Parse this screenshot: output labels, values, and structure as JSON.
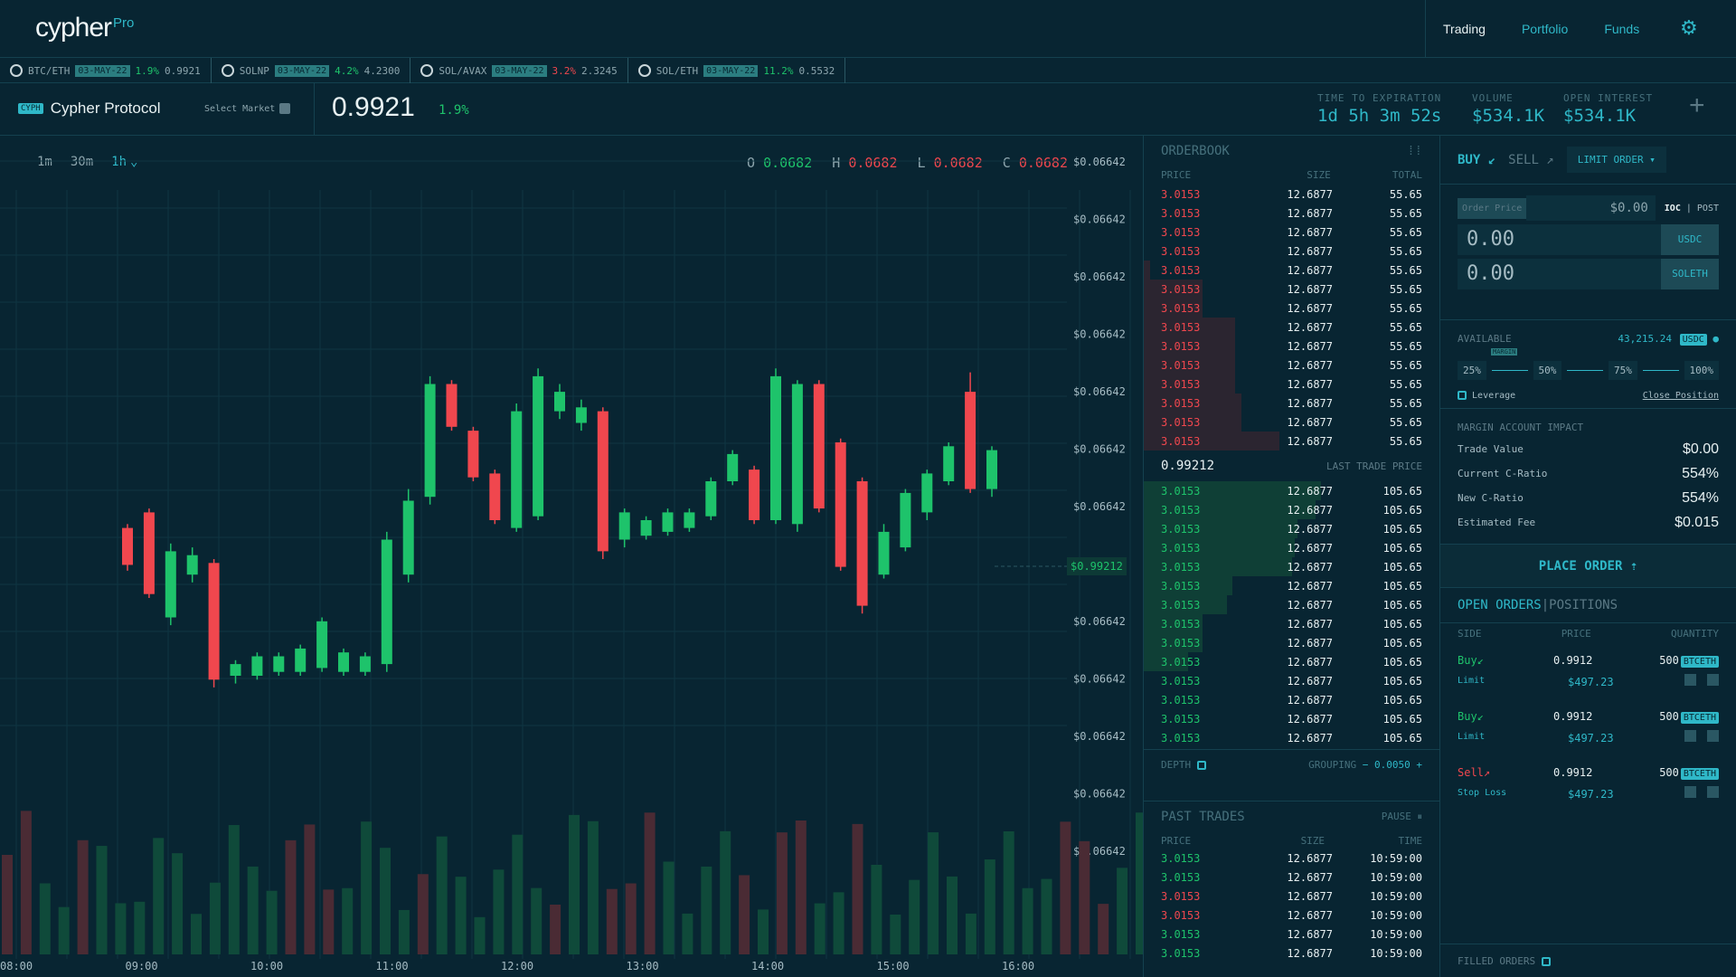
{
  "app": {
    "logo": "cypher",
    "logo_sup": "Pro"
  },
  "nav": {
    "trading": "Trading",
    "portfolio": "Portfolio",
    "funds": "Funds"
  },
  "ticker": [
    {
      "pair": "BTC/ETH",
      "date": "03-MAY-22",
      "chg": "1.9%",
      "price": "0.9921",
      "dir": "up"
    },
    {
      "pair": "SOLNP",
      "date": "03-MAY-22",
      "chg": "4.2%",
      "price": "4.2300",
      "dir": "up"
    },
    {
      "pair": "SOL/AVAX",
      "date": "03-MAY-22",
      "chg": "3.2%",
      "price": "2.3245",
      "dir": "down"
    },
    {
      "pair": "SOL/ETH",
      "date": "03-MAY-22",
      "chg": "11.2%",
      "price": "0.5532",
      "dir": "up"
    }
  ],
  "market": {
    "badge": "CYPH",
    "name": "Cypher Protocol",
    "select": "Select Market",
    "price": "0.9921",
    "change": "1.9%",
    "tte_label": "TIME TO EXPIRATION",
    "tte": "1d 5h 3m 52s",
    "vol_label": "VOLUME",
    "vol": "$534.1K",
    "oi_label": "OPEN INTEREST",
    "oi": "$534.1K"
  },
  "chart": {
    "timeframes": [
      "1m",
      "30m",
      "1h"
    ],
    "active_tf": "1h",
    "ohlc": {
      "o": "0.0682",
      "h": "0.0682",
      "l": "0.0682",
      "c": "0.0682"
    },
    "y_tick_label": "$0.06642",
    "y_ticks": 13,
    "current_price": "$0.99212",
    "x_labels": [
      "08:00",
      "09:00",
      "10:00",
      "11:00",
      "12:00",
      "13:00",
      "14:00",
      "15:00",
      "16:00"
    ],
    "colors": {
      "up": "#1ec36b",
      "down": "#f0474e"
    }
  },
  "chart_data": {
    "type": "candlestick",
    "x_labels": [
      "08:00",
      "09:00",
      "10:00",
      "11:00",
      "12:00",
      "13:00",
      "14:00",
      "15:00",
      "16:00"
    ],
    "y_tick_label": "$0.06642",
    "last_price": "$0.99212",
    "candles": [
      {
        "o": 0.48,
        "c": 0.385,
        "h": 0.49,
        "l": 0.37,
        "v": 0.18
      },
      {
        "o": 0.52,
        "c": 0.31,
        "h": 0.53,
        "l": 0.3,
        "v": 0.2
      },
      {
        "o": 0.25,
        "c": 0.42,
        "h": 0.44,
        "l": 0.23,
        "v": 0.08
      },
      {
        "o": 0.36,
        "c": 0.41,
        "h": 0.43,
        "l": 0.34,
        "v": 0.1
      },
      {
        "o": 0.39,
        "c": 0.09,
        "h": 0.4,
        "l": 0.07,
        "v": 0.15
      },
      {
        "o": 0.1,
        "c": 0.13,
        "h": 0.14,
        "l": 0.08,
        "v": 0.05
      },
      {
        "o": 0.1,
        "c": 0.15,
        "h": 0.16,
        "l": 0.09,
        "v": 0.07
      },
      {
        "o": 0.11,
        "c": 0.15,
        "h": 0.16,
        "l": 0.1,
        "v": 0.06
      },
      {
        "o": 0.11,
        "c": 0.17,
        "h": 0.18,
        "l": 0.1,
        "v": 0.08
      },
      {
        "o": 0.12,
        "c": 0.24,
        "h": 0.25,
        "l": 0.11,
        "v": 0.1
      },
      {
        "o": 0.11,
        "c": 0.16,
        "h": 0.17,
        "l": 0.1,
        "v": 0.07
      },
      {
        "o": 0.11,
        "c": 0.15,
        "h": 0.16,
        "l": 0.1,
        "v": 0.06
      },
      {
        "o": 0.13,
        "c": 0.45,
        "h": 0.47,
        "l": 0.11,
        "v": 0.12
      },
      {
        "o": 0.36,
        "c": 0.55,
        "h": 0.58,
        "l": 0.34,
        "v": 0.14
      },
      {
        "o": 0.56,
        "c": 0.85,
        "h": 0.87,
        "l": 0.54,
        "v": 0.2
      },
      {
        "o": 0.85,
        "c": 0.74,
        "h": 0.86,
        "l": 0.73,
        "v": 0.18
      },
      {
        "o": 0.73,
        "c": 0.61,
        "h": 0.74,
        "l": 0.6,
        "v": 0.15
      },
      {
        "o": 0.62,
        "c": 0.5,
        "h": 0.63,
        "l": 0.49,
        "v": 0.12
      },
      {
        "o": 0.48,
        "c": 0.78,
        "h": 0.8,
        "l": 0.47,
        "v": 0.16
      },
      {
        "o": 0.51,
        "c": 0.87,
        "h": 0.89,
        "l": 0.5,
        "v": 0.19
      },
      {
        "o": 0.78,
        "c": 0.83,
        "h": 0.85,
        "l": 0.76,
        "v": 0.1
      },
      {
        "o": 0.75,
        "c": 0.79,
        "h": 0.81,
        "l": 0.73,
        "v": 0.08
      },
      {
        "o": 0.78,
        "c": 0.42,
        "h": 0.79,
        "l": 0.4,
        "v": 0.14
      },
      {
        "o": 0.45,
        "c": 0.52,
        "h": 0.53,
        "l": 0.43,
        "v": 0.06
      },
      {
        "o": 0.46,
        "c": 0.5,
        "h": 0.51,
        "l": 0.45,
        "v": 0.05
      },
      {
        "o": 0.47,
        "c": 0.52,
        "h": 0.53,
        "l": 0.46,
        "v": 0.06
      },
      {
        "o": 0.48,
        "c": 0.52,
        "h": 0.53,
        "l": 0.47,
        "v": 0.05
      },
      {
        "o": 0.51,
        "c": 0.6,
        "h": 0.61,
        "l": 0.5,
        "v": 0.08
      },
      {
        "o": 0.6,
        "c": 0.67,
        "h": 0.68,
        "l": 0.59,
        "v": 0.1
      },
      {
        "o": 0.63,
        "c": 0.5,
        "h": 0.64,
        "l": 0.49,
        "v": 0.09
      },
      {
        "o": 0.5,
        "c": 0.87,
        "h": 0.89,
        "l": 0.49,
        "v": 0.25
      },
      {
        "o": 0.49,
        "c": 0.85,
        "h": 0.86,
        "l": 0.47,
        "v": 0.22
      },
      {
        "o": 0.85,
        "c": 0.53,
        "h": 0.86,
        "l": 0.52,
        "v": 0.18
      },
      {
        "o": 0.7,
        "c": 0.38,
        "h": 0.71,
        "l": 0.37,
        "v": 0.12
      },
      {
        "o": 0.6,
        "c": 0.28,
        "h": 0.61,
        "l": 0.26,
        "v": 0.2
      },
      {
        "o": 0.36,
        "c": 0.47,
        "h": 0.49,
        "l": 0.35,
        "v": 0.1
      },
      {
        "o": 0.43,
        "c": 0.57,
        "h": 0.58,
        "l": 0.42,
        "v": 0.08
      },
      {
        "o": 0.52,
        "c": 0.62,
        "h": 0.63,
        "l": 0.5,
        "v": 0.1
      },
      {
        "o": 0.6,
        "c": 0.69,
        "h": 0.7,
        "l": 0.59,
        "v": 0.09
      },
      {
        "o": 0.83,
        "c": 0.58,
        "h": 0.88,
        "l": 0.57,
        "v": 0.14
      },
      {
        "o": 0.58,
        "c": 0.68,
        "h": 0.69,
        "l": 0.56,
        "v": 0.08
      }
    ]
  },
  "orderbook": {
    "title": "ORDERBOOK",
    "h_price": "PRICE",
    "h_size": "SIZE",
    "h_total": "TOTAL",
    "asks": [
      {
        "p": "3.0153",
        "s": "12.6877",
        "t": "55.65",
        "d": 0
      },
      {
        "p": "3.0153",
        "s": "12.6877",
        "t": "55.65",
        "d": 0
      },
      {
        "p": "3.0153",
        "s": "12.6877",
        "t": "55.65",
        "d": 0
      },
      {
        "p": "3.0153",
        "s": "12.6877",
        "t": "55.65",
        "d": 0
      },
      {
        "p": "3.0153",
        "s": "12.6877",
        "t": "55.65",
        "d": 0.02
      },
      {
        "p": "3.0153",
        "s": "12.6877",
        "t": "55.65",
        "d": 0.2
      },
      {
        "p": "3.0153",
        "s": "12.6877",
        "t": "55.65",
        "d": 0.2
      },
      {
        "p": "3.0153",
        "s": "12.6877",
        "t": "55.65",
        "d": 0.31
      },
      {
        "p": "3.0153",
        "s": "12.6877",
        "t": "55.65",
        "d": 0.31
      },
      {
        "p": "3.0153",
        "s": "12.6877",
        "t": "55.65",
        "d": 0.31
      },
      {
        "p": "3.0153",
        "s": "12.6877",
        "t": "55.65",
        "d": 0.31
      },
      {
        "p": "3.0153",
        "s": "12.6877",
        "t": "55.65",
        "d": 0.33
      },
      {
        "p": "3.0153",
        "s": "12.6877",
        "t": "55.65",
        "d": 0.33
      },
      {
        "p": "3.0153",
        "s": "12.6877",
        "t": "55.65",
        "d": 0.46
      }
    ],
    "last_price": "0.99212",
    "last_label": "LAST TRADE PRICE",
    "bids": [
      {
        "p": "3.0153",
        "s": "12.6877",
        "t": "105.65",
        "d": 0.6
      },
      {
        "p": "3.0153",
        "s": "12.6877",
        "t": "105.65",
        "d": 0.58
      },
      {
        "p": "3.0153",
        "s": "12.6877",
        "t": "105.65",
        "d": 0.52
      },
      {
        "p": "3.0153",
        "s": "12.6877",
        "t": "105.65",
        "d": 0.51
      },
      {
        "p": "3.0153",
        "s": "12.6877",
        "t": "105.65",
        "d": 0.5
      },
      {
        "p": "3.0153",
        "s": "12.6877",
        "t": "105.65",
        "d": 0.3
      },
      {
        "p": "3.0153",
        "s": "12.6877",
        "t": "105.65",
        "d": 0.28
      },
      {
        "p": "3.0153",
        "s": "12.6877",
        "t": "105.65",
        "d": 0.2
      },
      {
        "p": "3.0153",
        "s": "12.6877",
        "t": "105.65",
        "d": 0.2
      },
      {
        "p": "3.0153",
        "s": "12.6877",
        "t": "105.65",
        "d": 0.15
      },
      {
        "p": "3.0153",
        "s": "12.6877",
        "t": "105.65",
        "d": 0
      },
      {
        "p": "3.0153",
        "s": "12.6877",
        "t": "105.65",
        "d": 0
      },
      {
        "p": "3.0153",
        "s": "12.6877",
        "t": "105.65",
        "d": 0
      },
      {
        "p": "3.0153",
        "s": "12.6877",
        "t": "105.65",
        "d": 0
      }
    ],
    "depth": "DEPTH",
    "grouping": "GROUPING",
    "grouping_val": "0.0050"
  },
  "past_trades": {
    "title": "PAST TRADES",
    "pause": "PAUSE",
    "h_price": "PRICE",
    "h_size": "SIZE",
    "h_time": "TIME",
    "rows": [
      {
        "p": "3.0153",
        "s": "12.6877",
        "t": "10:59:00",
        "dir": "up"
      },
      {
        "p": "3.0153",
        "s": "12.6877",
        "t": "10:59:00",
        "dir": "up"
      },
      {
        "p": "3.0153",
        "s": "12.6877",
        "t": "10:59:00",
        "dir": "down"
      },
      {
        "p": "3.0153",
        "s": "12.6877",
        "t": "10:59:00",
        "dir": "down"
      },
      {
        "p": "3.0153",
        "s": "12.6877",
        "t": "10:59:00",
        "dir": "up"
      },
      {
        "p": "3.0153",
        "s": "12.6877",
        "t": "10:59:00",
        "dir": "up"
      }
    ]
  },
  "order_panel": {
    "buy": "BUY",
    "sell": "SELL",
    "type": "LIMIT ORDER",
    "order_price_label": "Order Price",
    "order_price": "$0.00",
    "ioc": "IOC",
    "post": "POST",
    "amount1": "0.00",
    "cur1": "USDC",
    "amount2": "0.00",
    "cur2": "SOLETH",
    "available_label": "AVAILABLE",
    "available": "43,215.24",
    "available_cur": "USDC",
    "pcts": [
      "25%",
      "50%",
      "75%",
      "100%"
    ],
    "margin_tag": "MARGIN",
    "leverage": "Leverage",
    "close_position": "Close Position",
    "impact_title": "MARGIN ACCOUNT IMPACT",
    "impact": [
      {
        "k": "Trade Value",
        "v": "$0.00"
      },
      {
        "k": "Current C-Ratio",
        "v": "554%"
      },
      {
        "k": "New C-Ratio",
        "v": "554%"
      },
      {
        "k": "Estimated Fee",
        "v": "$0.015"
      }
    ],
    "place": "PLACE ORDER"
  },
  "open_orders": {
    "tab1": "OPEN ORDERS",
    "tab2": "POSITIONS",
    "h_side": "SIDE",
    "h_price": "PRICE",
    "h_qty": "QUANTITY",
    "rows": [
      {
        "side": "Buy",
        "type": "Limit",
        "price": "0.9912",
        "total": "$497.23",
        "qty": "500",
        "tok": "BTCETH",
        "dir": "up"
      },
      {
        "side": "Buy",
        "type": "Limit",
        "price": "0.9912",
        "total": "$497.23",
        "qty": "500",
        "tok": "BTCETH",
        "dir": "up"
      },
      {
        "side": "Sell",
        "type": "Stop Loss",
        "price": "0.9912",
        "total": "$497.23",
        "qty": "500",
        "tok": "BTCETH",
        "dir": "down"
      }
    ],
    "filled": "FILLED ORDERS"
  }
}
